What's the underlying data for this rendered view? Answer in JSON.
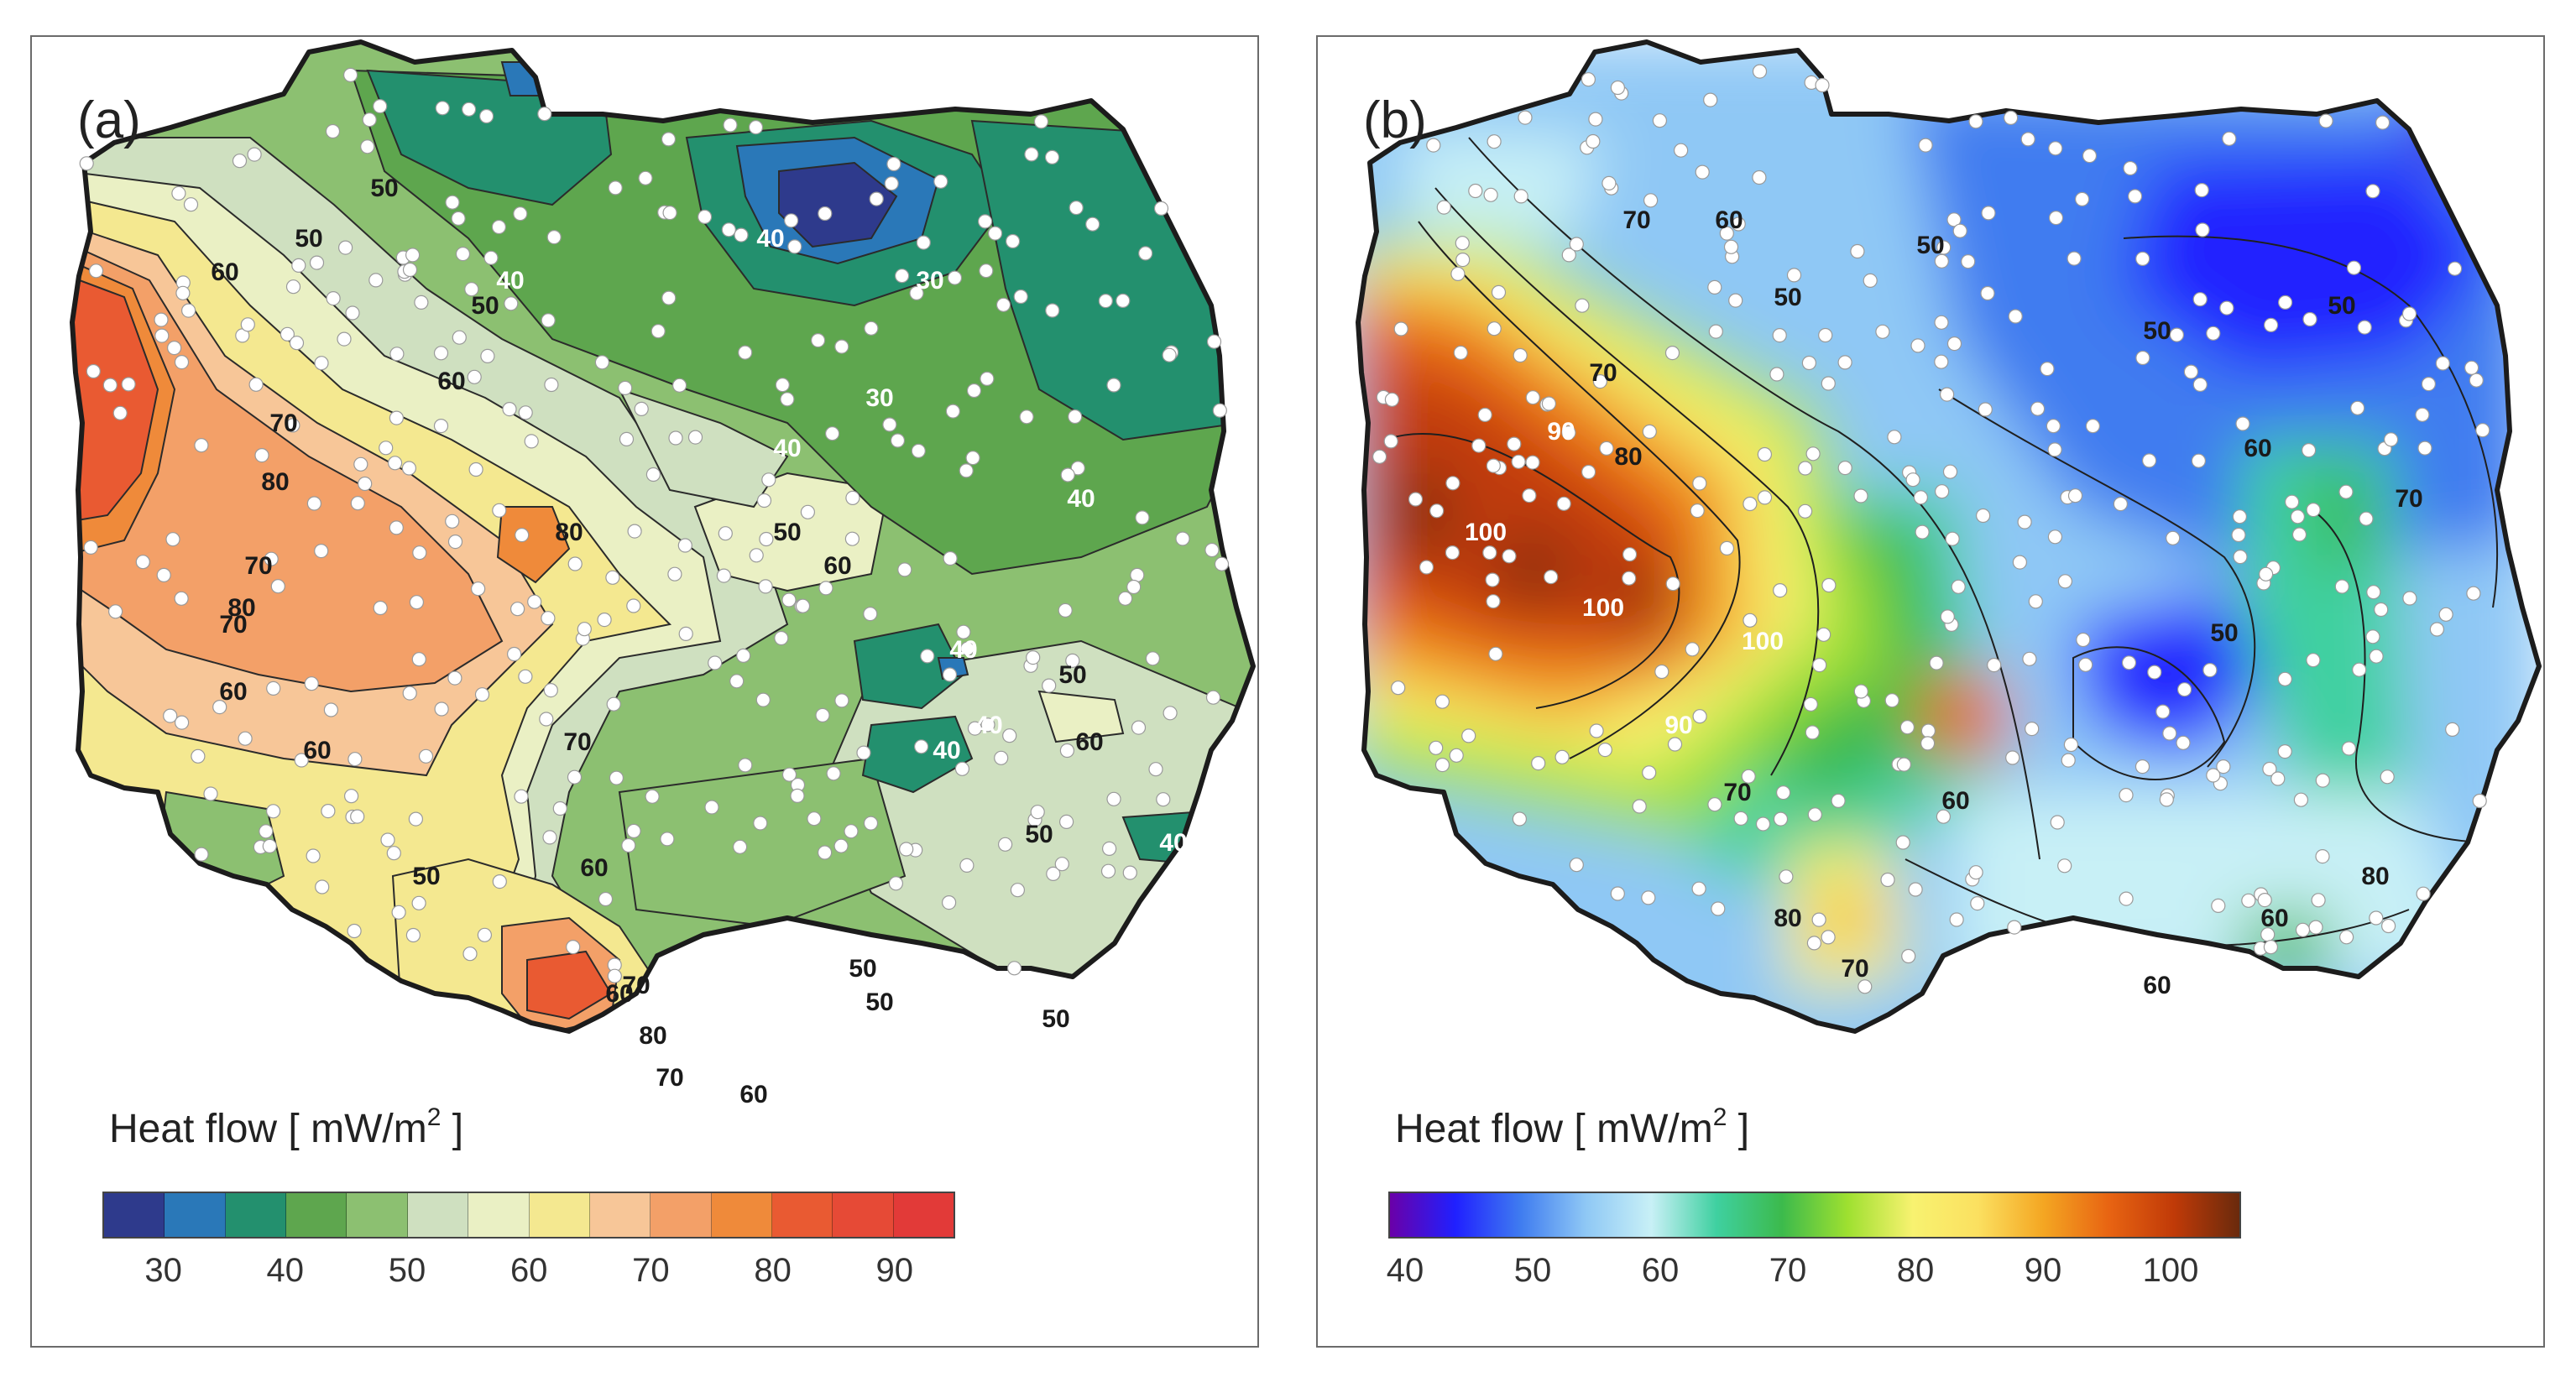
{
  "panels": [
    {
      "label": "(a)",
      "legend": {
        "title": "Heat flow  [ mW/m",
        "sup": "2",
        "close": " ]"
      },
      "colorbar": {
        "colors": [
          "#2e3a8c",
          "#2a78b8",
          "#23906e",
          "#5ea64e",
          "#8cc071",
          "#cfe0c0",
          "#eaf0c4",
          "#f4e890",
          "#f7c698",
          "#f3a068",
          "#ef8a3a",
          "#e95a32",
          "#e64a36",
          "#e23a38"
        ],
        "ticks": [
          "30",
          "40",
          "50",
          "60",
          "70",
          "80",
          "90"
        ]
      },
      "contour_labels": [
        {
          "text": "50",
          "c": "dark"
        },
        {
          "text": "50",
          "c": "dark"
        },
        {
          "text": "60",
          "c": "dark"
        },
        {
          "text": "50",
          "c": "dark"
        },
        {
          "text": "40",
          "c": "light"
        },
        {
          "text": "40",
          "c": "light"
        },
        {
          "text": "30",
          "c": "light"
        },
        {
          "text": "30",
          "c": "light"
        },
        {
          "text": "40",
          "c": "light"
        },
        {
          "text": "60",
          "c": "dark"
        },
        {
          "text": "70",
          "c": "dark"
        },
        {
          "text": "80",
          "c": "dark"
        },
        {
          "text": "80",
          "c": "dark"
        },
        {
          "text": "70",
          "c": "dark"
        },
        {
          "text": "80",
          "c": "dark"
        },
        {
          "text": "50",
          "c": "dark"
        },
        {
          "text": "40",
          "c": "light"
        },
        {
          "text": "60",
          "c": "dark"
        },
        {
          "text": "70",
          "c": "dark"
        },
        {
          "text": "60",
          "c": "dark"
        },
        {
          "text": "40",
          "c": "light"
        },
        {
          "text": "40",
          "c": "light"
        },
        {
          "text": "50",
          "c": "dark"
        },
        {
          "text": "60",
          "c": "dark"
        },
        {
          "text": "60",
          "c": "dark"
        },
        {
          "text": "70",
          "c": "dark"
        },
        {
          "text": "60",
          "c": "dark"
        },
        {
          "text": "50",
          "c": "dark"
        },
        {
          "text": "40",
          "c": "light"
        },
        {
          "text": "60",
          "c": "dark"
        },
        {
          "text": "50",
          "c": "dark"
        },
        {
          "text": "50",
          "c": "dark"
        },
        {
          "text": "70",
          "c": "dark"
        },
        {
          "text": "80",
          "c": "dark"
        },
        {
          "text": "70",
          "c": "dark"
        },
        {
          "text": "50",
          "c": "dark"
        },
        {
          "text": "60",
          "c": "dark"
        },
        {
          "text": "50",
          "c": "dark"
        },
        {
          "text": "40",
          "c": "light"
        }
      ]
    },
    {
      "label": "(b)",
      "legend": {
        "title": "Heat flow  [ mW/m",
        "sup": "2",
        "close": " ]"
      },
      "colorbar": {
        "gradient": [
          "#6a00a8",
          "#2020ff",
          "#3f7cf0",
          "#8fc8f5",
          "#c8f0f6",
          "#3fd0a0",
          "#3cba4c",
          "#9ee030",
          "#f8f270",
          "#fbe060",
          "#f4a622",
          "#e86412",
          "#c03a08",
          "#6a2a0c"
        ],
        "ticks": [
          "40",
          "50",
          "60",
          "70",
          "80",
          "90",
          "100"
        ]
      },
      "contour_labels": [
        {
          "text": "70",
          "c": "dark"
        },
        {
          "text": "60",
          "c": "dark"
        },
        {
          "text": "50",
          "c": "dark"
        },
        {
          "text": "50",
          "c": "dark"
        },
        {
          "text": "50",
          "c": "dark"
        },
        {
          "text": "70",
          "c": "dark"
        },
        {
          "text": "90",
          "c": "light"
        },
        {
          "text": "80",
          "c": "dark"
        },
        {
          "text": "100",
          "c": "light"
        },
        {
          "text": "100",
          "c": "light"
        },
        {
          "text": "100",
          "c": "light"
        },
        {
          "text": "90",
          "c": "light"
        },
        {
          "text": "50",
          "c": "dark"
        },
        {
          "text": "60",
          "c": "dark"
        },
        {
          "text": "70",
          "c": "dark"
        },
        {
          "text": "50",
          "c": "dark"
        },
        {
          "text": "70",
          "c": "dark"
        },
        {
          "text": "60",
          "c": "dark"
        },
        {
          "text": "80",
          "c": "dark"
        },
        {
          "text": "70",
          "c": "dark"
        },
        {
          "text": "80",
          "c": "dark"
        },
        {
          "text": "60",
          "c": "dark"
        },
        {
          "text": "60",
          "c": "dark"
        }
      ]
    }
  ]
}
